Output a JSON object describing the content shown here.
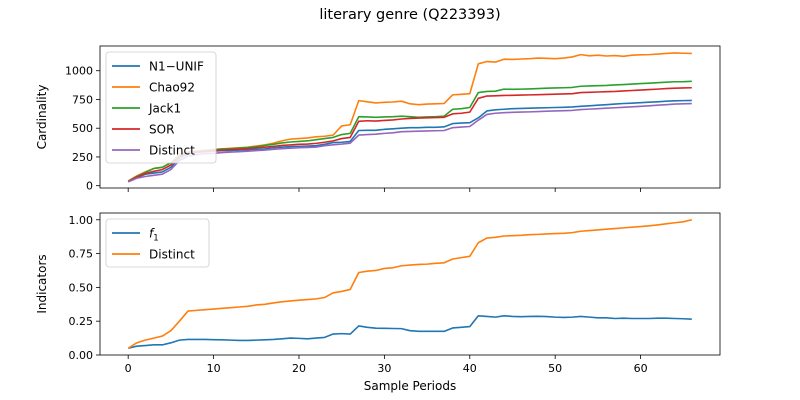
{
  "figure": {
    "title": "literary genre (Q223393)"
  },
  "chart_data": [
    {
      "type": "line",
      "ylabel": "Cardinality",
      "xlabel": "",
      "xlim": [
        -3.3,
        69.3
      ],
      "ylim": [
        -20,
        1215
      ],
      "xticks": [
        0,
        10,
        20,
        30,
        40,
        50,
        60
      ],
      "yticks": [
        0,
        250,
        500,
        750,
        1000
      ],
      "ytick_labels": [
        "0",
        "250",
        "500",
        "750",
        "1000"
      ],
      "show_xtick_labels": false,
      "legend": "top-left",
      "grid": false,
      "series": [
        {
          "name": "N1−UNIF",
          "color": "#1f77b4",
          "values": [
            35,
            70,
            100,
            110,
            120,
            160,
            240,
            275,
            290,
            295,
            300,
            305,
            305,
            310,
            312,
            318,
            320,
            330,
            335,
            340,
            342,
            345,
            348,
            360,
            375,
            378,
            385,
            480,
            482,
            482,
            490,
            495,
            500,
            505,
            505,
            508,
            508,
            512,
            540,
            545,
            548,
            590,
            650,
            660,
            665,
            670,
            672,
            674,
            676,
            678,
            680,
            682,
            685,
            690,
            695,
            700,
            705,
            710,
            715,
            718,
            722,
            726,
            730,
            735,
            738,
            740,
            742
          ]
        },
        {
          "name": "Chao92",
          "color": "#ff7f0e",
          "values": [
            40,
            85,
            120,
            150,
            160,
            200,
            270,
            295,
            300,
            308,
            315,
            320,
            325,
            330,
            335,
            345,
            355,
            370,
            390,
            405,
            410,
            415,
            425,
            430,
            440,
            520,
            530,
            740,
            730,
            720,
            725,
            728,
            735,
            712,
            705,
            710,
            712,
            715,
            790,
            795,
            800,
            1060,
            1080,
            1075,
            1100,
            1098,
            1102,
            1105,
            1110,
            1108,
            1105,
            1110,
            1120,
            1140,
            1130,
            1135,
            1128,
            1132,
            1125,
            1135,
            1138,
            1140,
            1145,
            1150,
            1155,
            1152,
            1150
          ]
        },
        {
          "name": "Jack1",
          "color": "#2ca02c",
          "values": [
            38,
            80,
            115,
            150,
            160,
            200,
            260,
            290,
            298,
            305,
            312,
            320,
            322,
            328,
            332,
            340,
            350,
            360,
            372,
            380,
            385,
            390,
            400,
            410,
            420,
            445,
            455,
            600,
            598,
            595,
            598,
            600,
            605,
            600,
            595,
            598,
            600,
            605,
            665,
            670,
            680,
            810,
            820,
            822,
            840,
            838,
            840,
            842,
            845,
            848,
            850,
            852,
            855,
            865,
            868,
            870,
            872,
            876,
            880,
            884,
            888,
            892,
            896,
            900,
            904,
            905,
            908
          ]
        },
        {
          "name": "SOR",
          "color": "#d62728",
          "values": [
            36,
            75,
            105,
            125,
            140,
            180,
            255,
            285,
            295,
            300,
            305,
            310,
            315,
            318,
            322,
            330,
            335,
            342,
            350,
            355,
            360,
            362,
            368,
            378,
            390,
            410,
            420,
            560,
            565,
            562,
            568,
            572,
            580,
            585,
            588,
            590,
            592,
            595,
            625,
            630,
            640,
            760,
            780,
            782,
            785,
            786,
            788,
            790,
            792,
            794,
            796,
            798,
            800,
            810,
            812,
            815,
            818,
            820,
            824,
            828,
            832,
            836,
            840,
            845,
            848,
            850,
            852
          ]
        },
        {
          "name": "Distinct",
          "color": "#9467bd",
          "values": [
            33,
            65,
            80,
            90,
            100,
            140,
            220,
            255,
            270,
            278,
            282,
            288,
            292,
            296,
            300,
            305,
            310,
            316,
            322,
            326,
            330,
            333,
            336,
            348,
            356,
            362,
            370,
            440,
            445,
            448,
            455,
            460,
            470,
            472,
            474,
            476,
            478,
            480,
            505,
            510,
            515,
            570,
            620,
            630,
            635,
            638,
            640,
            642,
            645,
            648,
            650,
            652,
            655,
            662,
            666,
            670,
            674,
            678,
            682,
            686,
            690,
            695,
            700,
            705,
            710,
            712,
            714
          ]
        }
      ]
    },
    {
      "type": "line",
      "ylabel": "Indicators",
      "xlabel": "Sample Periods",
      "xlim": [
        -3.3,
        69.3
      ],
      "ylim": [
        0,
        1.05
      ],
      "xticks": [
        0,
        10,
        20,
        30,
        40,
        50,
        60
      ],
      "xtick_labels": [
        "0",
        "10",
        "20",
        "30",
        "40",
        "50",
        "60"
      ],
      "yticks": [
        0,
        0.25,
        0.5,
        0.75,
        1.0
      ],
      "ytick_labels": [
        "0.00",
        "0.25",
        "0.50",
        "0.75",
        "1.00"
      ],
      "show_xtick_labels": true,
      "legend": "top-left",
      "grid": false,
      "series": [
        {
          "name": "f1",
          "label_main": "f",
          "label_sub": "1",
          "color": "#1f77b4",
          "values": [
            0.05,
            0.065,
            0.07,
            0.075,
            0.075,
            0.09,
            0.11,
            0.115,
            0.115,
            0.115,
            0.113,
            0.112,
            0.11,
            0.108,
            0.108,
            0.11,
            0.112,
            0.115,
            0.12,
            0.125,
            0.123,
            0.12,
            0.125,
            0.13,
            0.155,
            0.158,
            0.155,
            0.215,
            0.205,
            0.198,
            0.197,
            0.196,
            0.195,
            0.18,
            0.175,
            0.175,
            0.175,
            0.175,
            0.2,
            0.205,
            0.21,
            0.29,
            0.285,
            0.28,
            0.29,
            0.285,
            0.283,
            0.285,
            0.286,
            0.284,
            0.28,
            0.278,
            0.28,
            0.285,
            0.28,
            0.275,
            0.275,
            0.27,
            0.272,
            0.27,
            0.27,
            0.27,
            0.272,
            0.272,
            0.27,
            0.268,
            0.265
          ]
        },
        {
          "name": "Distinct",
          "color": "#ff7f0e",
          "values": [
            0.05,
            0.09,
            0.11,
            0.125,
            0.14,
            0.18,
            0.25,
            0.325,
            0.33,
            0.335,
            0.34,
            0.345,
            0.35,
            0.355,
            0.36,
            0.37,
            0.375,
            0.385,
            0.393,
            0.4,
            0.405,
            0.41,
            0.415,
            0.425,
            0.46,
            0.47,
            0.485,
            0.61,
            0.62,
            0.625,
            0.64,
            0.645,
            0.66,
            0.665,
            0.67,
            0.672,
            0.678,
            0.682,
            0.71,
            0.72,
            0.73,
            0.83,
            0.865,
            0.87,
            0.88,
            0.882,
            0.885,
            0.89,
            0.892,
            0.895,
            0.898,
            0.9,
            0.905,
            0.915,
            0.92,
            0.925,
            0.93,
            0.935,
            0.94,
            0.945,
            0.95,
            0.955,
            0.962,
            0.97,
            0.978,
            0.985,
            1.0
          ]
        }
      ]
    }
  ]
}
